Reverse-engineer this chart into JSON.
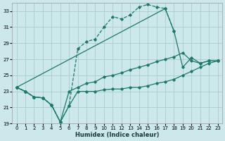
{
  "xlabel": "Humidex (Indice chaleur)",
  "bg_color": "#cce8ea",
  "grid_color": "#aacccc",
  "line_color": "#1a7a6a",
  "xlim": [
    -0.5,
    23.5
  ],
  "ylim": [
    19,
    34
  ],
  "yticks": [
    19,
    21,
    23,
    25,
    27,
    29,
    31,
    33
  ],
  "xticks": [
    0,
    1,
    2,
    3,
    4,
    5,
    6,
    7,
    8,
    9,
    10,
    11,
    12,
    13,
    14,
    15,
    16,
    17,
    18,
    19,
    20,
    21,
    22,
    23
  ],
  "lines": [
    {
      "x": [
        0,
        1,
        2,
        3,
        4,
        5,
        6,
        7,
        8,
        9,
        10,
        11,
        12,
        13,
        14,
        15,
        16,
        17,
        18
      ],
      "y": [
        23.5,
        23.0,
        22.3,
        22.2,
        21.3,
        19.2,
        21.2,
        28.3,
        29.2,
        29.5,
        31.0,
        32.3,
        32.0,
        32.5,
        33.5,
        33.8,
        33.5,
        33.3,
        30.5
      ]
    },
    {
      "x": [
        0,
        17,
        18,
        19,
        20,
        21,
        22,
        23
      ],
      "y": [
        23.5,
        33.3,
        30.5,
        26.0,
        27.2,
        26.5,
        26.8,
        26.8
      ]
    },
    {
      "x": [
        0,
        1,
        2,
        3,
        4,
        5,
        6,
        7,
        8,
        9,
        10,
        11,
        12,
        13,
        14,
        15,
        16,
        17,
        18,
        19,
        20,
        21,
        22,
        23
      ],
      "y": [
        23.5,
        23.0,
        22.3,
        22.2,
        21.3,
        19.2,
        23.0,
        23.5,
        24.0,
        24.2,
        24.8,
        25.0,
        25.3,
        25.7,
        26.0,
        26.3,
        26.7,
        27.0,
        27.3,
        27.8,
        26.8,
        26.5,
        26.8,
        26.8
      ]
    },
    {
      "x": [
        0,
        1,
        2,
        3,
        4,
        5,
        6,
        7,
        8,
        9,
        10,
        11,
        12,
        13,
        14,
        15,
        16,
        17,
        18,
        19,
        20,
        21,
        22,
        23
      ],
      "y": [
        23.5,
        23.0,
        22.3,
        22.2,
        21.3,
        19.2,
        21.2,
        23.0,
        23.0,
        23.0,
        23.2,
        23.3,
        23.3,
        23.5,
        23.5,
        23.7,
        24.0,
        24.2,
        24.5,
        25.0,
        25.5,
        26.0,
        26.5,
        26.8
      ]
    }
  ]
}
